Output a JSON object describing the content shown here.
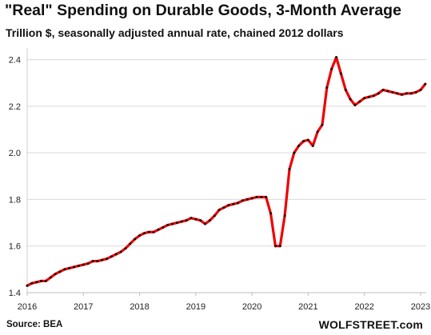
{
  "chart_data": {
    "type": "line",
    "title": "\"Real\" Spending on Durable Goods, 3-Month Average",
    "subtitle": "Trillion $, seasonally adjusted annual rate, chained 2012 dollars",
    "xlabel": "",
    "ylabel": "",
    "source": "Source: BEA",
    "brand": "WOLFSTREET.com",
    "xlim": [
      2016,
      2023.1
    ],
    "ylim": [
      1.4,
      2.45
    ],
    "y_ticks": [
      1.4,
      1.6,
      1.8,
      2.0,
      2.2,
      2.4
    ],
    "y_tick_labels": [
      "1.4",
      "1.6",
      "1.8",
      "2.0",
      "2.2",
      "2.4"
    ],
    "x_ticks": [
      2016,
      2017,
      2018,
      2019,
      2020,
      2021,
      2022,
      2023
    ],
    "x_tick_labels": [
      "2016",
      "2017",
      "2018",
      "2019",
      "2020",
      "2021",
      "2022",
      "2023"
    ],
    "grid": "horizontal",
    "legend": "none",
    "line_color": "#ee0000",
    "marker_color": "#111111",
    "series": [
      {
        "values": [
          [
            2016.0,
            1.43
          ],
          [
            2016.083,
            1.44
          ],
          [
            2016.167,
            1.445
          ],
          [
            2016.25,
            1.45
          ],
          [
            2016.333,
            1.45
          ],
          [
            2016.417,
            1.465
          ],
          [
            2016.5,
            1.48
          ],
          [
            2016.583,
            1.49
          ],
          [
            2016.667,
            1.5
          ],
          [
            2016.75,
            1.505
          ],
          [
            2016.833,
            1.51
          ],
          [
            2016.917,
            1.515
          ],
          [
            2017.0,
            1.52
          ],
          [
            2017.083,
            1.525
          ],
          [
            2017.167,
            1.535
          ],
          [
            2017.25,
            1.535
          ],
          [
            2017.333,
            1.54
          ],
          [
            2017.417,
            1.545
          ],
          [
            2017.5,
            1.555
          ],
          [
            2017.583,
            1.565
          ],
          [
            2017.667,
            1.575
          ],
          [
            2017.75,
            1.59
          ],
          [
            2017.833,
            1.61
          ],
          [
            2017.917,
            1.63
          ],
          [
            2018.0,
            1.645
          ],
          [
            2018.083,
            1.655
          ],
          [
            2018.167,
            1.66
          ],
          [
            2018.25,
            1.66
          ],
          [
            2018.333,
            1.67
          ],
          [
            2018.417,
            1.68
          ],
          [
            2018.5,
            1.69
          ],
          [
            2018.583,
            1.695
          ],
          [
            2018.667,
            1.7
          ],
          [
            2018.75,
            1.705
          ],
          [
            2018.833,
            1.71
          ],
          [
            2018.917,
            1.72
          ],
          [
            2019.0,
            1.715
          ],
          [
            2019.083,
            1.71
          ],
          [
            2019.167,
            1.695
          ],
          [
            2019.25,
            1.71
          ],
          [
            2019.333,
            1.73
          ],
          [
            2019.417,
            1.755
          ],
          [
            2019.5,
            1.765
          ],
          [
            2019.583,
            1.775
          ],
          [
            2019.667,
            1.78
          ],
          [
            2019.75,
            1.785
          ],
          [
            2019.833,
            1.795
          ],
          [
            2019.917,
            1.8
          ],
          [
            2020.0,
            1.805
          ],
          [
            2020.083,
            1.81
          ],
          [
            2020.167,
            1.81
          ],
          [
            2020.25,
            1.81
          ],
          [
            2020.333,
            1.74
          ],
          [
            2020.417,
            1.6
          ],
          [
            2020.5,
            1.6
          ],
          [
            2020.583,
            1.73
          ],
          [
            2020.667,
            1.93
          ],
          [
            2020.75,
            2.0
          ],
          [
            2020.833,
            2.03
          ],
          [
            2020.917,
            2.05
          ],
          [
            2021.0,
            2.055
          ],
          [
            2021.083,
            2.03
          ],
          [
            2021.167,
            2.09
          ],
          [
            2021.25,
            2.12
          ],
          [
            2021.333,
            2.28
          ],
          [
            2021.417,
            2.36
          ],
          [
            2021.5,
            2.41
          ],
          [
            2021.583,
            2.34
          ],
          [
            2021.667,
            2.27
          ],
          [
            2021.75,
            2.23
          ],
          [
            2021.833,
            2.205
          ],
          [
            2021.917,
            2.22
          ],
          [
            2022.0,
            2.235
          ],
          [
            2022.083,
            2.24
          ],
          [
            2022.167,
            2.245
          ],
          [
            2022.25,
            2.255
          ],
          [
            2022.333,
            2.27
          ],
          [
            2022.417,
            2.265
          ],
          [
            2022.5,
            2.26
          ],
          [
            2022.583,
            2.255
          ],
          [
            2022.667,
            2.25
          ],
          [
            2022.75,
            2.255
          ],
          [
            2022.833,
            2.255
          ],
          [
            2022.917,
            2.26
          ],
          [
            2023.0,
            2.27
          ],
          [
            2023.083,
            2.295
          ]
        ]
      }
    ]
  }
}
